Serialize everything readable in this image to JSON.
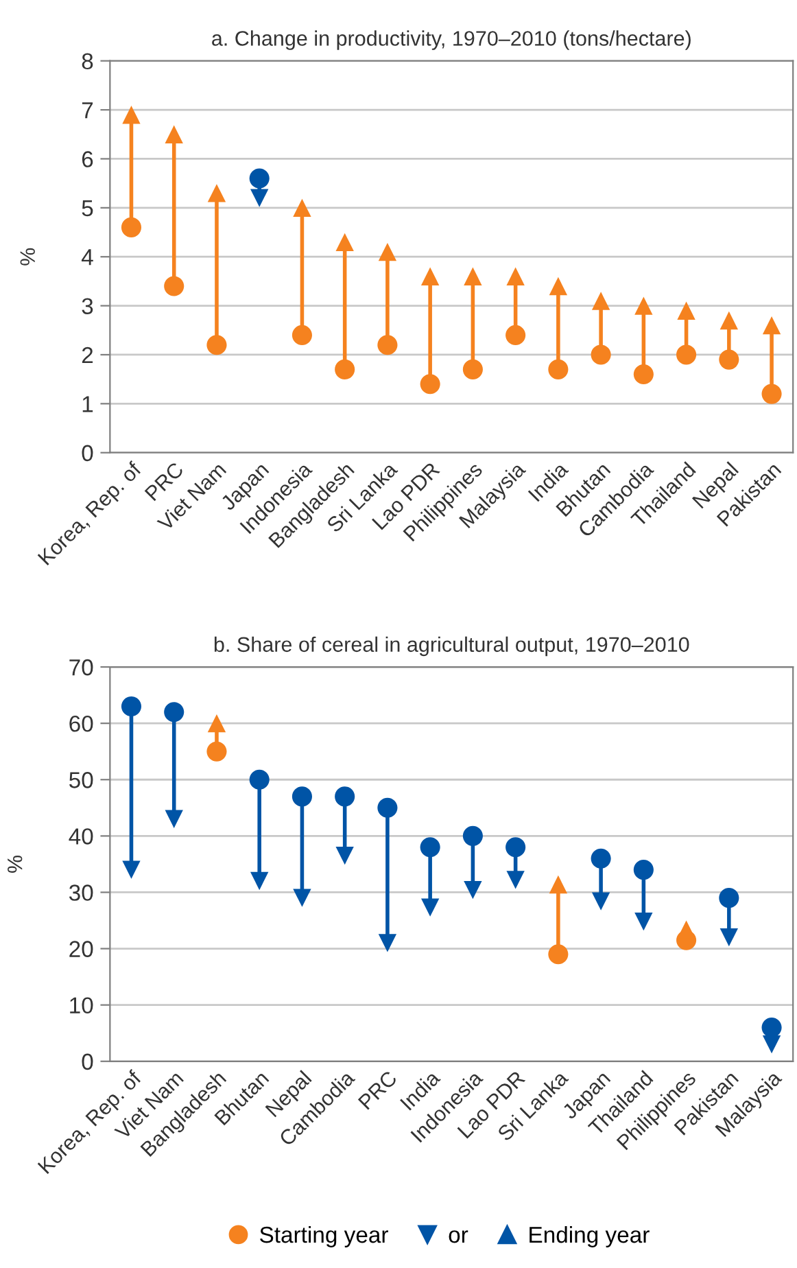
{
  "chart_data": [
    {
      "type": "scatter",
      "title": "a. Change in productivity, 1970–2010 (tons/hectare)",
      "ylabel": "%",
      "categories": [
        "Korea, Rep. of",
        "PRC",
        "Viet Nam",
        "Japan",
        "Indonesia",
        "Bangladesh",
        "Sri Lanka",
        "Lao PDR",
        "Philippines",
        "Malaysia",
        "India",
        "Bhutan",
        "Cambodia",
        "Thailand",
        "Nepal",
        "Pakistan"
      ],
      "series": [
        {
          "marker": "circle",
          "values": [
            4.6,
            3.4,
            2.2,
            5.6,
            2.4,
            1.7,
            2.2,
            1.4,
            1.7,
            2.4,
            1.7,
            2.0,
            1.6,
            2.0,
            1.9,
            1.2
          ],
          "colors": [
            "#f5821f",
            "#f5821f",
            "#f5821f",
            "#0054a6",
            "#f5821f",
            "#f5821f",
            "#f5821f",
            "#f5821f",
            "#f5821f",
            "#f5821f",
            "#f5821f",
            "#f5821f",
            "#f5821f",
            "#f5821f",
            "#f5821f",
            "#f5821f"
          ]
        },
        {
          "marker": "triangle",
          "values": [
            6.9,
            6.5,
            5.3,
            5.2,
            5.0,
            4.3,
            4.1,
            3.6,
            3.6,
            3.6,
            3.4,
            3.1,
            3.0,
            2.9,
            2.7,
            2.6
          ],
          "colors": [
            "#f5821f",
            "#f5821f",
            "#f5821f",
            "#0054a6",
            "#f5821f",
            "#f5821f",
            "#f5821f",
            "#f5821f",
            "#f5821f",
            "#f5821f",
            "#f5821f",
            "#f5821f",
            "#f5821f",
            "#f5821f",
            "#f5821f",
            "#f5821f"
          ]
        }
      ],
      "ylim": [
        0,
        8
      ],
      "yticks": [
        0,
        1,
        2,
        3,
        4,
        5,
        6,
        7,
        8
      ],
      "grid": "y"
    },
    {
      "type": "scatter",
      "title": "b. Share of cereal in agricultural output, 1970–2010",
      "ylabel": "%",
      "categories": [
        "Korea, Rep. of",
        "Viet Nam",
        "Bangladesh",
        "Bhutan",
        "Nepal",
        "Cambodia",
        "PRC",
        "India",
        "Indonesia",
        "Lao PDR",
        "Sri Lanka",
        "Japan",
        "Thailand",
        "Philippines",
        "Pakistan",
        "Malaysia"
      ],
      "series": [
        {
          "name": "Starting year",
          "marker": "circle",
          "values": [
            63,
            62,
            55,
            50,
            47,
            47,
            45,
            38,
            40,
            38,
            19,
            36,
            34,
            21.5,
            29,
            6
          ],
          "colors": [
            "#0054a6",
            "#0054a6",
            "#f5821f",
            "#0054a6",
            "#0054a6",
            "#0054a6",
            "#0054a6",
            "#0054a6",
            "#0054a6",
            "#0054a6",
            "#f5821f",
            "#0054a6",
            "#0054a6",
            "#f5821f",
            "#0054a6",
            "#0054a6"
          ]
        },
        {
          "name": "Ending year",
          "marker": "triangle",
          "values": [
            34,
            43,
            60,
            32,
            29,
            36.5,
            21,
            27.3,
            30.4,
            32.2,
            31.4,
            28.4,
            24.8,
            23.4,
            22,
            3
          ],
          "colors": [
            "#0054a6",
            "#0054a6",
            "#f5821f",
            "#0054a6",
            "#0054a6",
            "#0054a6",
            "#0054a6",
            "#0054a6",
            "#0054a6",
            "#0054a6",
            "#f5821f",
            "#0054a6",
            "#0054a6",
            "#f5821f",
            "#0054a6",
            "#0054a6"
          ]
        }
      ],
      "annotations": [
        "or"
      ],
      "ylim": [
        0,
        70
      ],
      "yticks": [
        0,
        10,
        20,
        30,
        40,
        50,
        60,
        70
      ],
      "grid": "y",
      "legend": "bottom"
    }
  ]
}
